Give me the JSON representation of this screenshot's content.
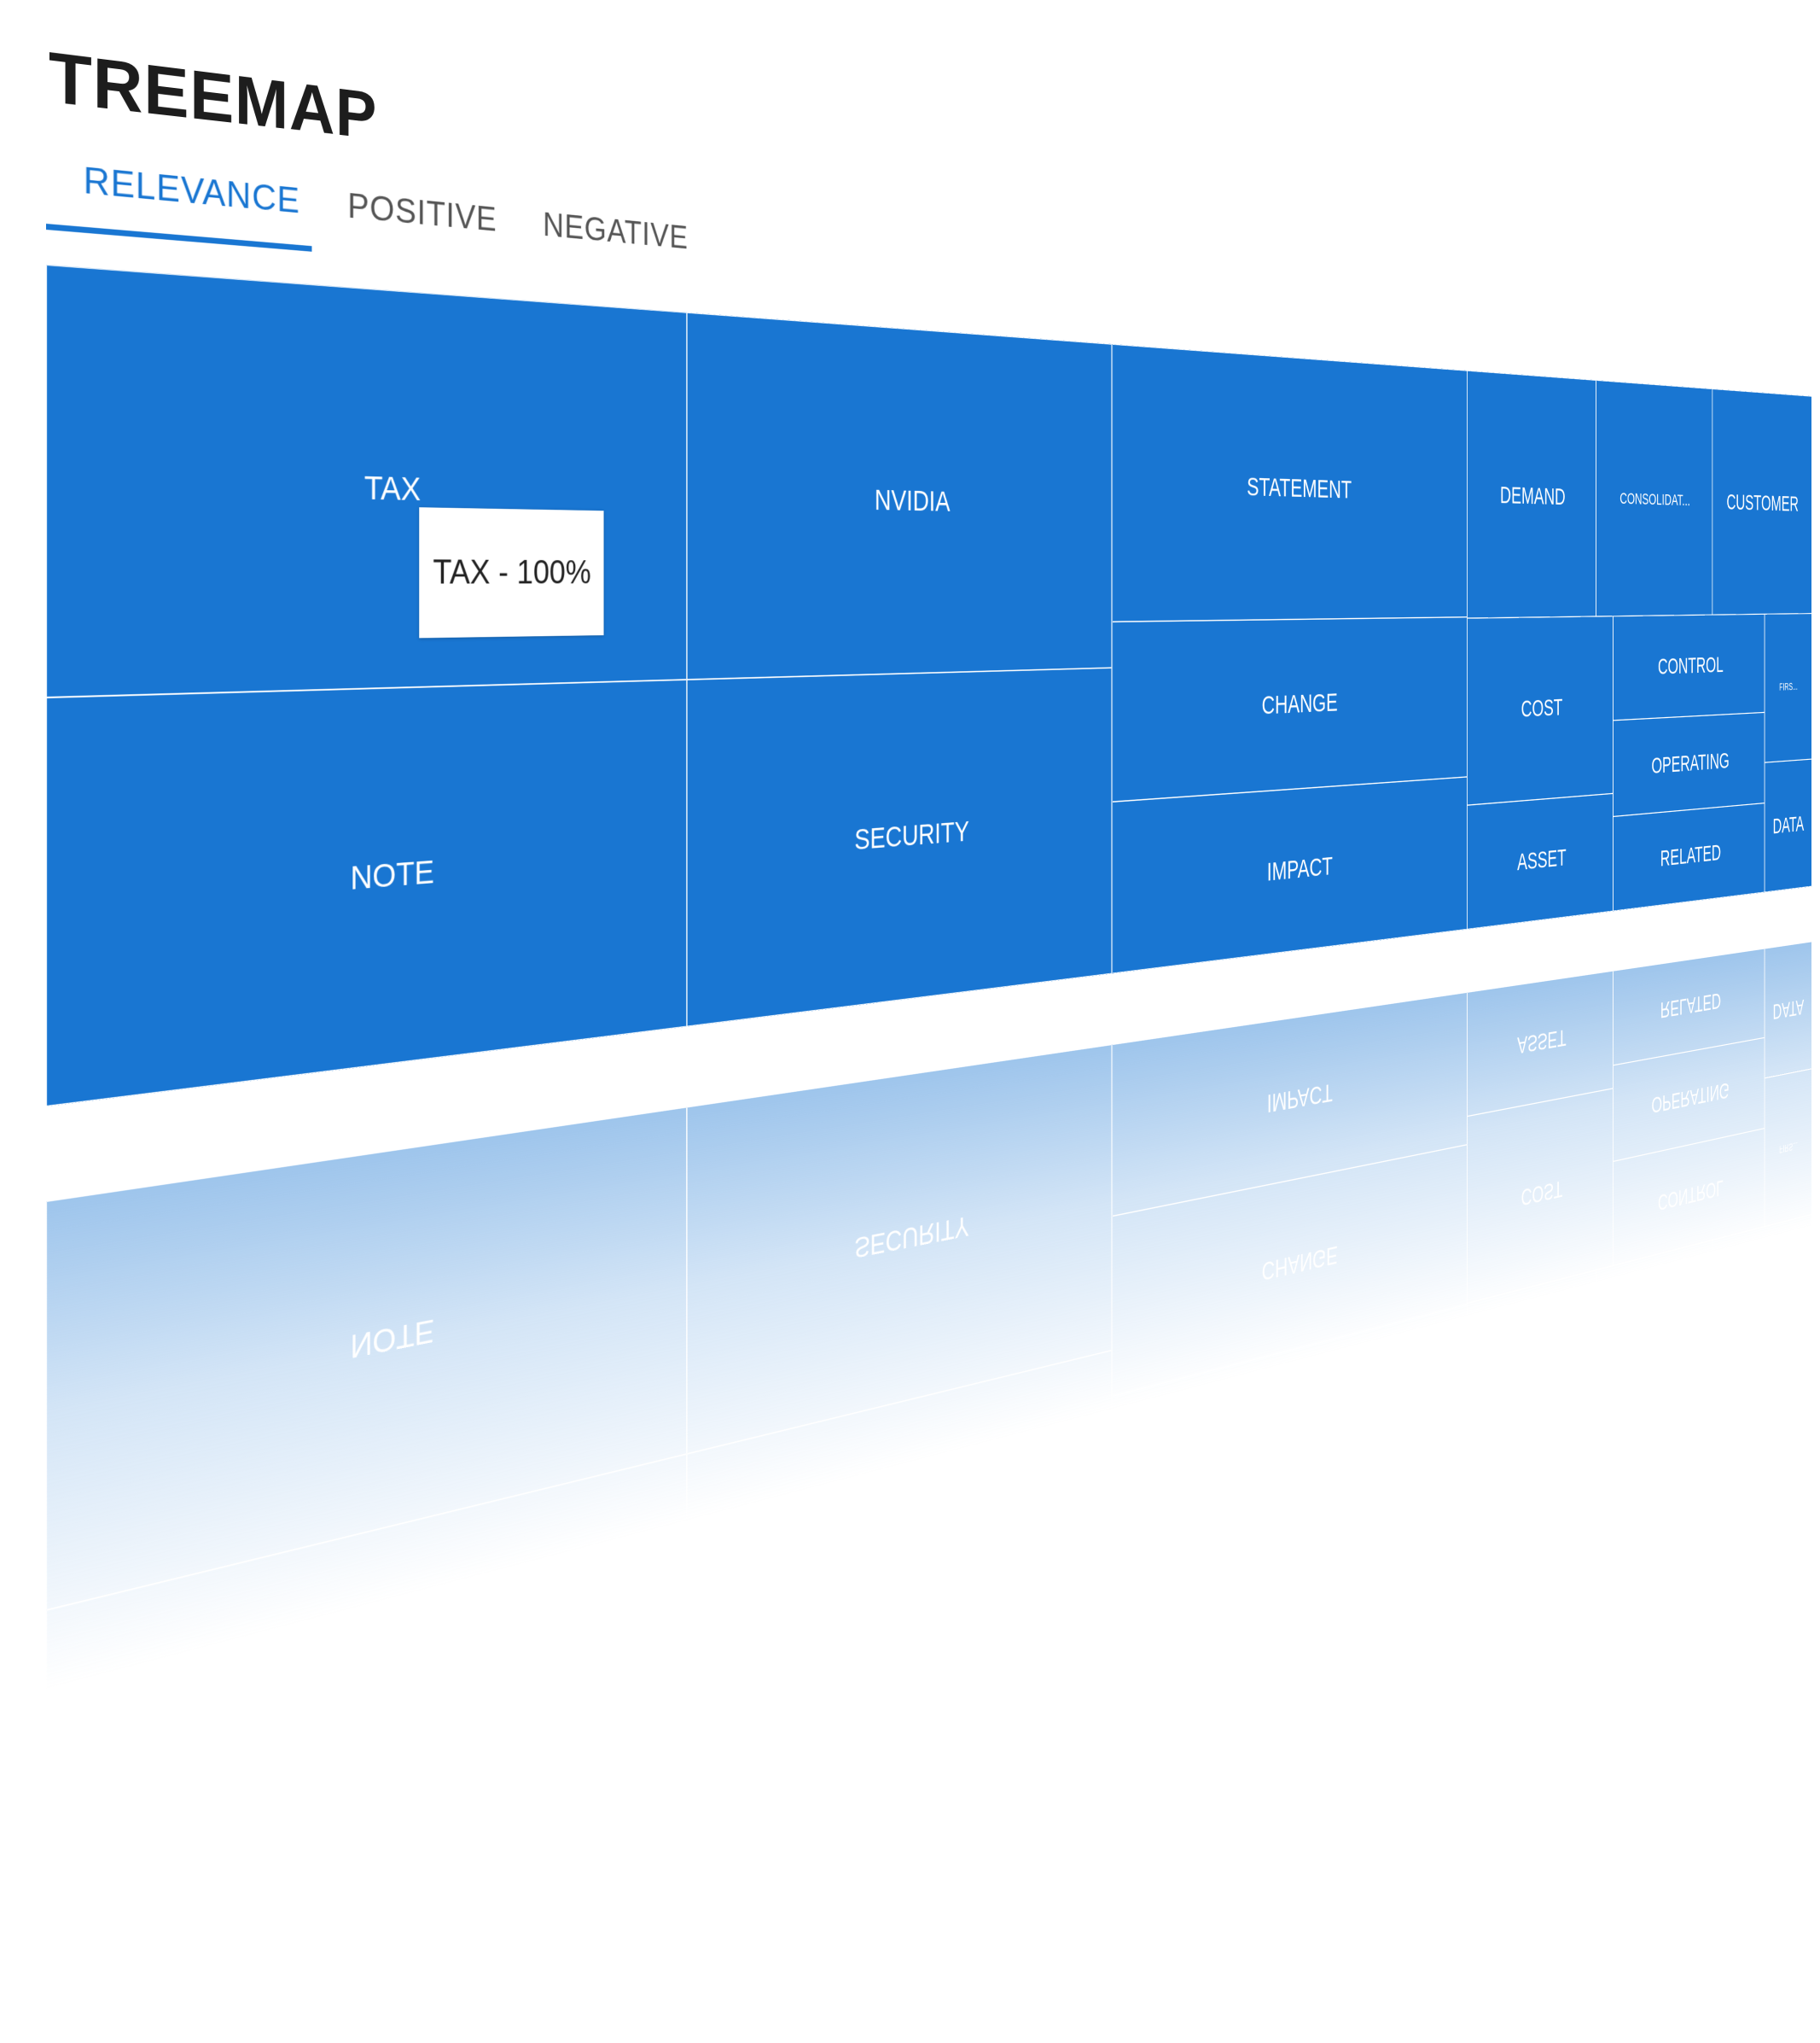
{
  "header": {
    "title": "TREEMAP"
  },
  "tabs": [
    {
      "label": "RELEVANCE",
      "active": true
    },
    {
      "label": "POSITIVE",
      "active": false
    },
    {
      "label": "NEGATIVE",
      "active": false
    }
  ],
  "tooltip": {
    "text": "TAX - 100%"
  },
  "colors": {
    "accent": "#1976d2",
    "cell_border": "#ffffff",
    "label": "#ffffff"
  },
  "treemap": {
    "cells": [
      {
        "label": "TAX",
        "value": 12.8
      },
      {
        "label": "NOTE",
        "value": 12.1
      },
      {
        "label": "NVIDIA",
        "value": 11.4
      },
      {
        "label": "SECURITY",
        "value": 10.7
      },
      {
        "label": "STATEMENT",
        "value": 10.4
      },
      {
        "label": "CHANGE",
        "value": 6.8
      },
      {
        "label": "IMPACT",
        "value": 6.4
      },
      {
        "label": "DEMAND",
        "value": 4.5
      },
      {
        "label": "CONSOLIDAT...",
        "value": 4.4
      },
      {
        "label": "CUSTOMER",
        "value": 4.1
      },
      {
        "label": "COST",
        "value": 3.9
      },
      {
        "label": "ASSET",
        "value": 2.6
      },
      {
        "label": "CONTROL",
        "value": 2.6
      },
      {
        "label": "OPERATING",
        "value": 2.4
      },
      {
        "label": "RELATED",
        "value": 2.4
      },
      {
        "label": "FIRS...",
        "value": 1.3
      },
      {
        "label": "DATA",
        "value": 1.2
      }
    ]
  },
  "chart_data": {
    "type": "treemap",
    "title": "TREEMAP",
    "categories": [
      "TAX",
      "NOTE",
      "NVIDIA",
      "SECURITY",
      "STATEMENT",
      "CHANGE",
      "IMPACT",
      "DEMAND",
      "CONSOLIDAT...",
      "CUSTOMER",
      "COST",
      "ASSET",
      "CONTROL",
      "OPERATING",
      "RELATED",
      "FIRS...",
      "DATA"
    ],
    "values": [
      12.8,
      12.1,
      11.4,
      10.7,
      10.4,
      6.8,
      6.4,
      4.5,
      4.4,
      4.1,
      3.9,
      2.6,
      2.6,
      2.4,
      2.4,
      1.3,
      1.2
    ],
    "selected_tab": "RELEVANCE",
    "tooltip": "TAX - 100%"
  }
}
